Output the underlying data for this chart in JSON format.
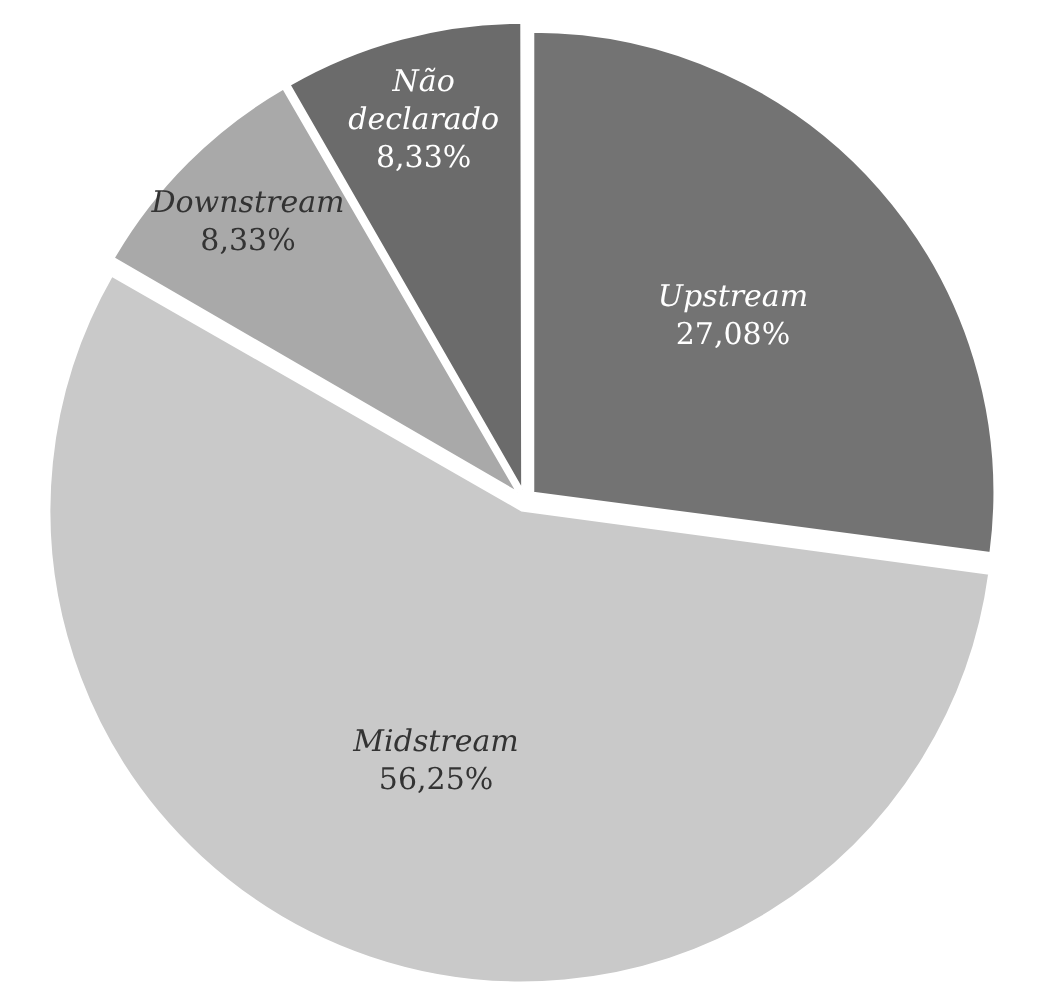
{
  "chart_data": {
    "type": "pie",
    "categories": [
      "Upstream",
      "Midstream",
      "Downstream",
      "Não declarado"
    ],
    "values": [
      27.08,
      56.25,
      8.33,
      8.33
    ],
    "value_labels": [
      "27,08%",
      "56,25%",
      "8,33%",
      "8,33%"
    ],
    "colors": [
      "#737373",
      "#c9c9c9",
      "#a9a9a9",
      "#6b6b6b"
    ],
    "legend": false
  }
}
